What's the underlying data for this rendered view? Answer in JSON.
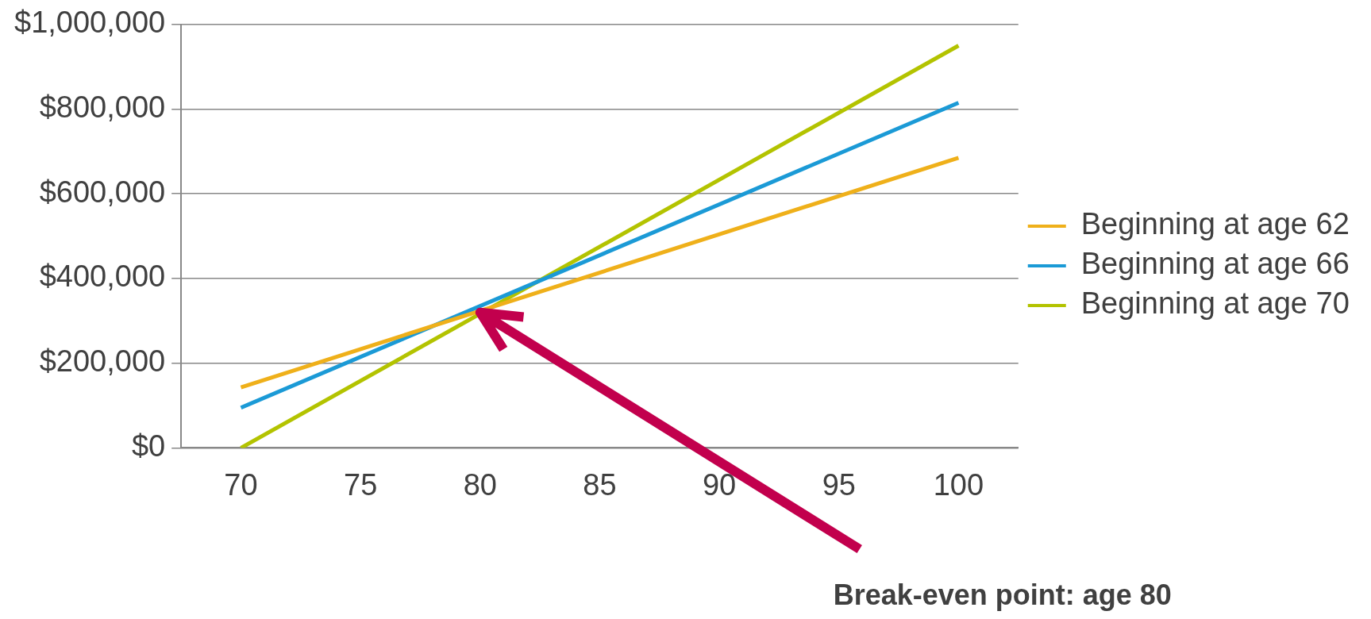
{
  "chart_data": {
    "type": "line",
    "x": [
      70,
      100
    ],
    "series": [
      {
        "name": "Beginning at age 62",
        "color": "#efb01a",
        "values": [
          143000,
          685000
        ]
      },
      {
        "name": "Beginning at age 66",
        "color": "#1b9ad6",
        "values": [
          95000,
          815000
        ]
      },
      {
        "name": "Beginning at age 70",
        "color": "#b3c300",
        "values": [
          0,
          950000
        ]
      }
    ],
    "xlim": [
      67.5,
      102.5
    ],
    "xticks": [
      70,
      75,
      80,
      85,
      90,
      95,
      100
    ],
    "ylim": [
      0,
      1000000
    ],
    "yticks": [
      {
        "value": 0,
        "label": "$0"
      },
      {
        "value": 200000,
        "label": "$200,000"
      },
      {
        "value": 400000,
        "label": "$400,000"
      },
      {
        "value": 600000,
        "label": "$600,000"
      },
      {
        "value": 800000,
        "label": "$800,000"
      },
      {
        "value": 1000000,
        "label": "$1,000,000"
      }
    ],
    "grid": "y",
    "legend": "right",
    "marker": "none",
    "line_style": "solid",
    "annotations": [
      {
        "text": "Break-even point: age 80",
        "x": 80,
        "y": 320000
      }
    ]
  }
}
